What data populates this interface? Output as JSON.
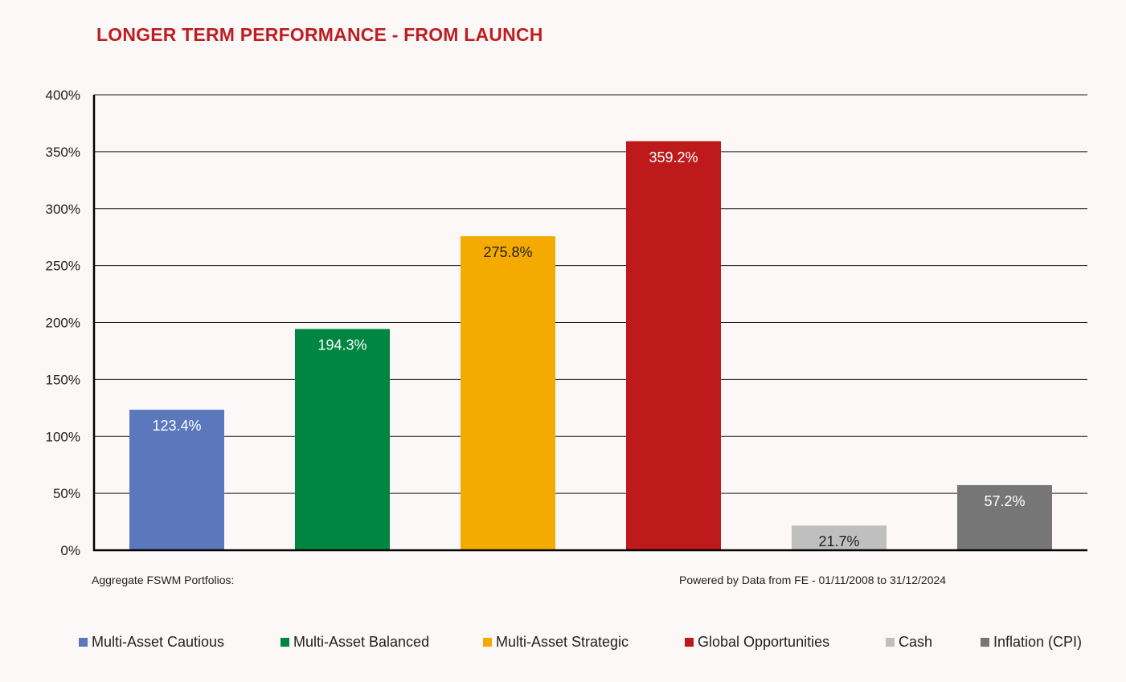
{
  "title": "LONGER TERM PERFORMANCE - FROM LAUNCH",
  "left_note": "Aggregate FSWM Portfolios:",
  "right_note": "Powered by Data from FE - 01/11/2008 to 31/12/2024",
  "chart_data": {
    "type": "bar",
    "title": "LONGER TERM PERFORMANCE - FROM LAUNCH",
    "categories": [
      "Multi-Asset Cautious",
      "Multi-Asset Balanced",
      "Multi-Asset Strategic",
      "Global Opportunities",
      "Cash",
      "Inflation (CPI)"
    ],
    "values": [
      123.4,
      194.3,
      275.8,
      359.2,
      21.7,
      57.2
    ],
    "value_labels": [
      "123.4%",
      "194.3%",
      "275.8%",
      "359.2%",
      "21.7%",
      "57.2%"
    ],
    "colors": [
      "#5b78bd",
      "#008641",
      "#f5aa00",
      "#be1a1b",
      "#bfbfbf",
      "#767676"
    ],
    "label_colors": [
      "#ffffff",
      "#ffffff",
      "#222222",
      "#ffffff",
      "#222222",
      "#ffffff"
    ],
    "ylim": [
      0,
      400
    ],
    "yticks": [
      0,
      50,
      100,
      150,
      200,
      250,
      300,
      350,
      400
    ],
    "ytick_labels": [
      "0%",
      "50%",
      "100%",
      "150%",
      "200%",
      "250%",
      "300%",
      "350%",
      "400%"
    ],
    "xlabel": "",
    "ylabel": "",
    "grid": true,
    "legend_position": "bottom"
  }
}
